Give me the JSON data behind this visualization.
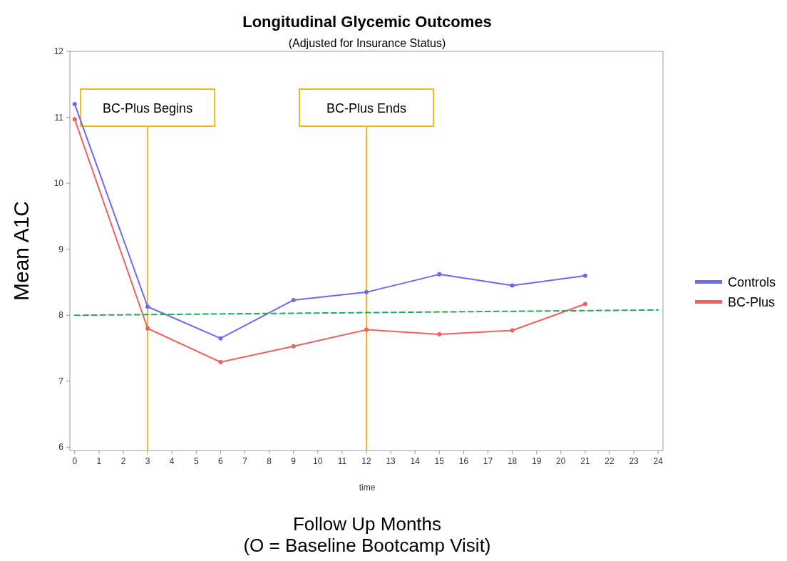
{
  "chart_data": {
    "type": "line",
    "title": "Longitudinal Glycemic Outcomes",
    "subtitle": "(Adjusted for Insurance Status)",
    "xlabel": "time",
    "ylabel": "Mean A1C",
    "annotations": [
      "Follow Up Months",
      "(O = Baseline Bootcamp Visit)"
    ],
    "x": [
      0,
      3,
      6,
      9,
      12,
      15,
      18,
      21
    ],
    "series": [
      {
        "name": "Controls",
        "color": "#6b6bf2",
        "values": [
          11.2,
          8.13,
          7.65,
          8.23,
          8.35,
          8.62,
          8.45,
          8.6
        ]
      },
      {
        "name": "BC-Plus",
        "color": "#f26060",
        "values": [
          10.97,
          7.8,
          7.29,
          7.53,
          7.78,
          7.71,
          7.77,
          8.17
        ]
      },
      {
        "type": "line",
        "x": [
          0,
          24
        ],
        "values": [
          8.0,
          8.08
        ],
        "color": "#22aa55",
        "line_style": "dashed",
        "marker": "none"
      }
    ],
    "ref_lines": [
      {
        "axis": "x",
        "value": 3,
        "label": "BC-Plus Begins",
        "color": "#f0b820"
      },
      {
        "axis": "x",
        "value": 12,
        "label": "BC-Plus Ends",
        "color": "#f0b820"
      }
    ],
    "xlim": [
      -0.2,
      24.2
    ],
    "xticks": [
      0,
      1,
      2,
      3,
      4,
      5,
      6,
      7,
      8,
      9,
      10,
      11,
      12,
      13,
      14,
      15,
      16,
      17,
      18,
      19,
      20,
      21,
      22,
      23,
      24
    ],
    "ylim": [
      5.95,
      12
    ],
    "yticks": [
      6,
      7,
      8,
      9,
      10,
      11,
      12
    ],
    "marker": "circle",
    "line_style": "solid",
    "legend": "right",
    "grid": false
  }
}
